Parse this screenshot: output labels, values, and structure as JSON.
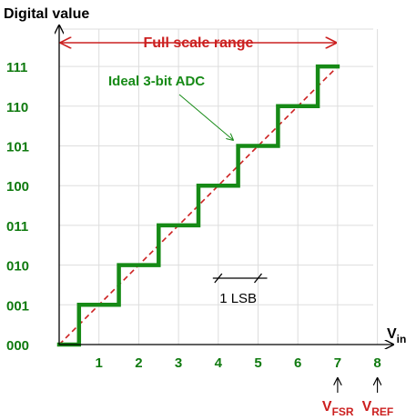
{
  "chart_data": {
    "type": "line",
    "title": "",
    "ylabel": "Digital value",
    "xlabel": {
      "main": "V",
      "sub": "in"
    },
    "x_ticks": [
      "1",
      "2",
      "3",
      "4",
      "5",
      "6",
      "7",
      "8"
    ],
    "y_ticks": [
      "000",
      "001",
      "010",
      "011",
      "100",
      "101",
      "110",
      "111"
    ],
    "xlim": [
      0,
      8
    ],
    "ylim": [
      0,
      7
    ],
    "grid": true,
    "full_scale_range": {
      "label": "Full scale range",
      "from": 0,
      "to": 7
    },
    "lsb": {
      "label": "1 LSB",
      "from": 4,
      "to": 5
    },
    "ideal_line": {
      "from": [
        0,
        0
      ],
      "to": [
        7,
        7
      ]
    },
    "series": [
      {
        "name": "Ideal 3-bit ADC",
        "points": [
          [
            0,
            0
          ],
          [
            0.5,
            0
          ],
          [
            0.5,
            1
          ],
          [
            1.5,
            1
          ],
          [
            1.5,
            2
          ],
          [
            2.5,
            2
          ],
          [
            2.5,
            3
          ],
          [
            3.5,
            3
          ],
          [
            3.5,
            4
          ],
          [
            4.5,
            4
          ],
          [
            4.5,
            5
          ],
          [
            5.5,
            5
          ],
          [
            5.5,
            6
          ],
          [
            6.5,
            6
          ],
          [
            6.5,
            7
          ],
          [
            7,
            7
          ]
        ]
      }
    ],
    "markers": [
      {
        "x": 7,
        "main": "V",
        "sub": "FSR"
      },
      {
        "x": 8,
        "main": "V",
        "sub": "REF"
      }
    ],
    "colors": {
      "staircase": "#168a16",
      "tick_label": "#0f7a0f",
      "range": "#cc2020",
      "ideal_line": "#cc2020",
      "grid": "#dddddd",
      "axis": "#000000"
    }
  }
}
